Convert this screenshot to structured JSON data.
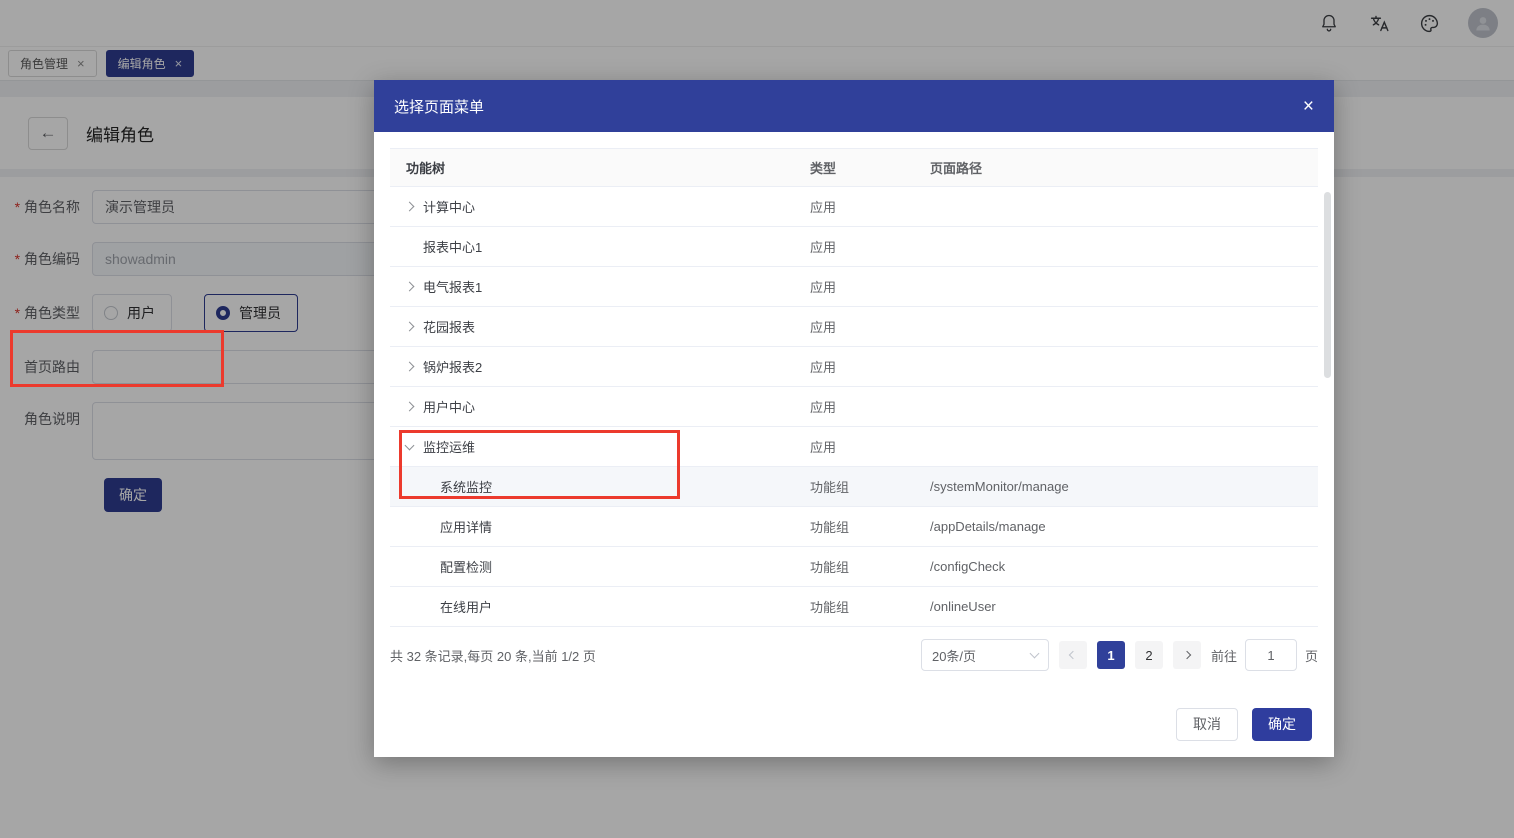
{
  "colors": {
    "primary": "#2f3d91",
    "modal_header": "#30409a",
    "annotation_red": "#ec3a2d",
    "row_border": "#ebeef5",
    "highlight_row": "#f5f7fa"
  },
  "topbar": {
    "icons": [
      "notification-bell",
      "language-translate",
      "theme-palette",
      "user-avatar"
    ]
  },
  "tabs": [
    {
      "label": "角色管理",
      "close": "×",
      "active": false
    },
    {
      "label": "编辑角色",
      "close": "×",
      "active": true
    }
  ],
  "page": {
    "title": "编辑角色",
    "back_icon": "←",
    "form": {
      "role_name": {
        "label": "角色名称",
        "required": true,
        "value": "演示管理员"
      },
      "role_code": {
        "label": "角色编码",
        "required": true,
        "value": "showadmin",
        "disabled": true
      },
      "role_type": {
        "label": "角色类型",
        "required": true,
        "options": [
          {
            "label": "用户",
            "selected": false
          },
          {
            "label": "管理员",
            "selected": true
          }
        ]
      },
      "home_route": {
        "label": "首页路由",
        "required": false,
        "value": ""
      },
      "role_desc": {
        "label": "角色说明",
        "required": false,
        "value": ""
      },
      "submit_label": "确定"
    }
  },
  "modal": {
    "title": "选择页面菜单",
    "close_icon": "×",
    "table": {
      "columns": [
        "功能树",
        "类型",
        "页面路径"
      ],
      "rows": [
        {
          "name": "计算中心",
          "caret": "right",
          "indent": false,
          "type": "应用",
          "path": "",
          "highlight": false
        },
        {
          "name": "报表中心1",
          "caret": "none",
          "indent": false,
          "type": "应用",
          "path": "",
          "highlight": false
        },
        {
          "name": "电气报表1",
          "caret": "right",
          "indent": false,
          "type": "应用",
          "path": "",
          "highlight": false
        },
        {
          "name": "花园报表",
          "caret": "right",
          "indent": false,
          "type": "应用",
          "path": "",
          "highlight": false
        },
        {
          "name": "锅炉报表2",
          "caret": "right",
          "indent": false,
          "type": "应用",
          "path": "",
          "highlight": false
        },
        {
          "name": "用户中心",
          "caret": "right",
          "indent": false,
          "type": "应用",
          "path": "",
          "highlight": false
        },
        {
          "name": "监控运维",
          "caret": "down",
          "indent": false,
          "type": "应用",
          "path": "",
          "highlight": false
        },
        {
          "name": "系统监控",
          "caret": "none",
          "indent": true,
          "type": "功能组",
          "path": "/systemMonitor/manage",
          "highlight": true
        },
        {
          "name": "应用详情",
          "caret": "none",
          "indent": true,
          "type": "功能组",
          "path": "/appDetails/manage",
          "highlight": false
        },
        {
          "name": "配置检测",
          "caret": "none",
          "indent": true,
          "type": "功能组",
          "path": "/configCheck",
          "highlight": false
        },
        {
          "name": "在线用户",
          "caret": "none",
          "indent": true,
          "type": "功能组",
          "path": "/onlineUser",
          "highlight": false
        }
      ]
    },
    "pagination": {
      "summary": "共 32 条记录,每页 20 条,当前 1/2 页",
      "page_size": "20条/页",
      "pages": [
        "1",
        "2"
      ],
      "active_page": "1",
      "goto_label": "前往",
      "goto_value": "1",
      "goto_suffix": "页"
    },
    "footer": {
      "cancel": "取消",
      "confirm": "确定"
    }
  }
}
